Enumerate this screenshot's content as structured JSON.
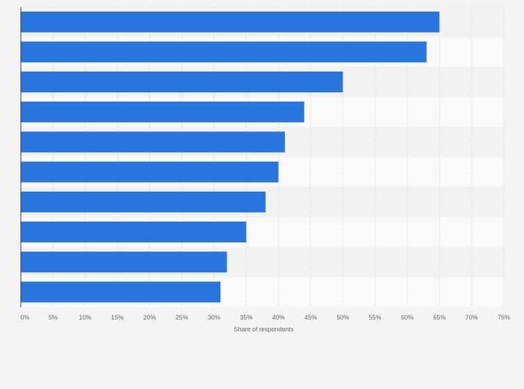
{
  "chart_data": {
    "type": "bar",
    "orientation": "horizontal",
    "categories": [
      "",
      "",
      "",
      "",
      "",
      "",
      "",
      "",
      "",
      ""
    ],
    "values": [
      65,
      63,
      50,
      44,
      41,
      40,
      38,
      35,
      32,
      31
    ],
    "value_format": "percent",
    "title": "",
    "xlabel": "Share of respondents",
    "ylabel": "",
    "xlim": [
      0,
      75
    ],
    "x_ticks": [
      0,
      5,
      10,
      15,
      20,
      25,
      30,
      35,
      40,
      45,
      50,
      55,
      60,
      65,
      70,
      75
    ],
    "x_tick_labels": [
      "0%",
      "5%",
      "10%",
      "15%",
      "20%",
      "25%",
      "30%",
      "35%",
      "40%",
      "45%",
      "50%",
      "55%",
      "60%",
      "65%",
      "70%",
      "75%"
    ],
    "grid": true,
    "legend": "none",
    "bar_color": "#2876dd",
    "band_colors": [
      "#f2f2f2",
      "#f9f9f9"
    ]
  }
}
